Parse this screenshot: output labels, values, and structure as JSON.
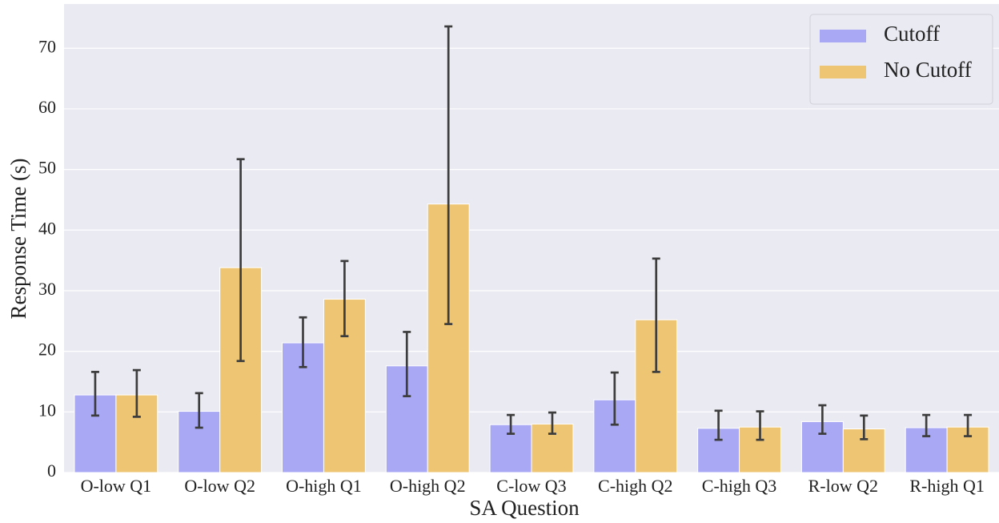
{
  "chart_data": {
    "type": "bar",
    "x_label": "SA Question",
    "y_label": "Response Time (s)",
    "categories": [
      "O-low Q1",
      "O-low Q2",
      "O-high Q1",
      "O-high Q2",
      "C-low Q3",
      "C-high Q2",
      "C-high Q3",
      "R-low Q2",
      "R-high Q1"
    ],
    "series": [
      {
        "name": "Cutoff",
        "color": "#a8a8f4",
        "values": [
          12.8,
          10.1,
          21.4,
          17.6,
          7.9,
          12.0,
          7.3,
          8.4,
          7.4
        ],
        "lower": [
          9.4,
          7.4,
          17.4,
          12.6,
          6.4,
          7.9,
          5.4,
          6.4,
          6.0
        ],
        "upper": [
          16.6,
          13.1,
          25.6,
          23.2,
          9.5,
          16.5,
          10.2,
          11.1,
          9.5
        ]
      },
      {
        "name": "No Cutoff",
        "color": "#eec572",
        "values": [
          12.8,
          33.8,
          28.6,
          44.3,
          8.0,
          25.2,
          7.5,
          7.2,
          7.5
        ],
        "lower": [
          9.2,
          18.4,
          22.5,
          24.5,
          6.4,
          16.6,
          5.4,
          5.5,
          6.0
        ],
        "upper": [
          16.9,
          51.7,
          34.9,
          73.6,
          9.9,
          35.3,
          10.1,
          9.4,
          9.5
        ]
      }
    ],
    "ylim": [
      0,
      77.3
    ],
    "yticks": [
      0,
      10,
      20,
      30,
      40,
      50,
      60,
      70
    ],
    "grid": true,
    "legend": "upper right"
  }
}
